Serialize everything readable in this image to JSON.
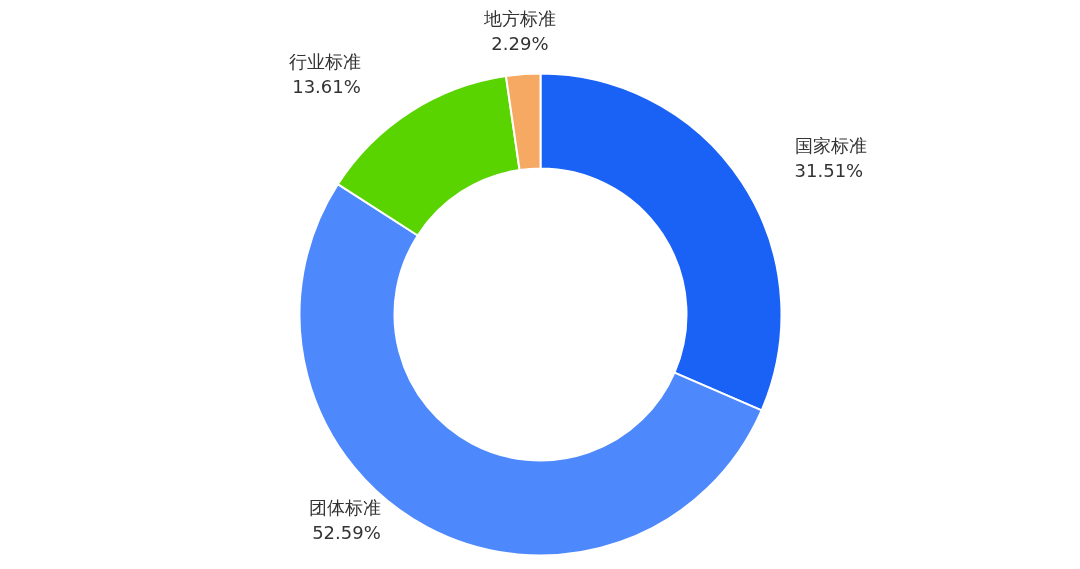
{
  "chart_data": {
    "type": "donut",
    "categories": [
      "国家标准",
      "团体标准",
      "行业标准",
      "地方标准"
    ],
    "values": [
      31.51,
      52.59,
      13.61,
      2.29
    ],
    "colors": [
      "#1a62f5",
      "#4d88fc",
      "#5ad400",
      "#f5a963"
    ],
    "value_labels": [
      "31.51%",
      "52.59%",
      "13.61%",
      "2.29%"
    ],
    "legend": false
  }
}
